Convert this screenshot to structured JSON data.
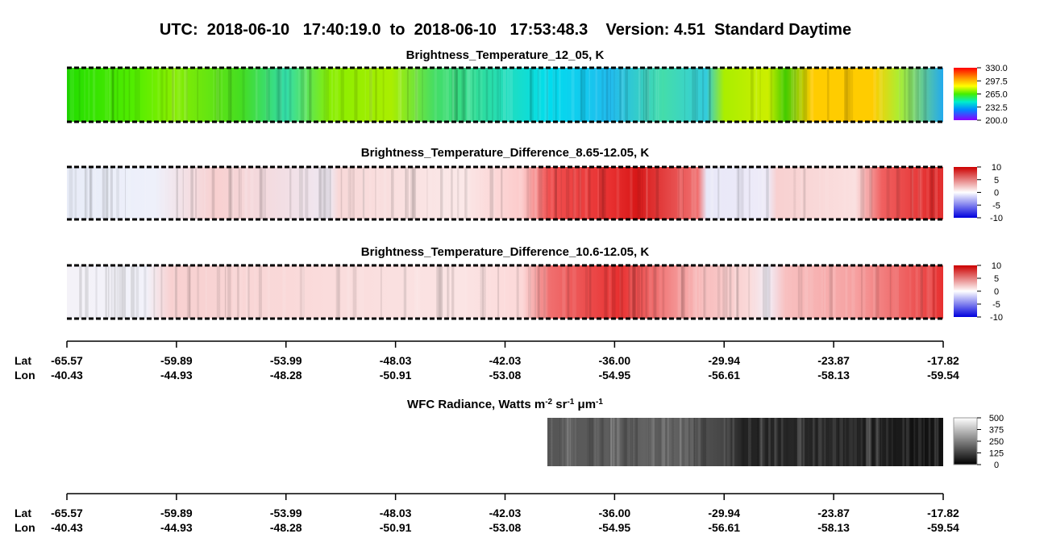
{
  "header": {
    "title": "UTC:  2018-06-10   17:40:19.0  to  2018-06-10   17:53:48.3    Version: 4.51  Standard Daytime"
  },
  "panels": [
    {
      "title": "Brightness_Temperature_12_05, K",
      "colorbar_ticks": [
        {
          "value": 330,
          "label": "330.0"
        },
        {
          "value": 297.5,
          "label": "297.5"
        },
        {
          "value": 265,
          "label": "265.0"
        },
        {
          "value": 232.5,
          "label": "232.5"
        },
        {
          "value": 200,
          "label": "200.0"
        }
      ]
    },
    {
      "title": "Brightness_Temperature_Difference_8.65-12.05, K",
      "colorbar_ticks": [
        10,
        5,
        0,
        -5,
        -10
      ]
    },
    {
      "title": "Brightness_Temperature_Difference_10.6-12.05, K",
      "colorbar_ticks": [
        10,
        5,
        0,
        -5,
        -10
      ]
    },
    {
      "title_parts": [
        "WFC Radiance, Watts m",
        "-2",
        " sr",
        "-1",
        " μm",
        "-1"
      ],
      "colorbar_ticks": [
        500,
        375,
        250,
        125,
        0
      ]
    }
  ],
  "axes": [
    {
      "lat_label": "Lat",
      "lon_label": "Lon",
      "lat": [
        "-65.57",
        "-59.89",
        "-53.99",
        "-48.03",
        "-42.03",
        "-36.00",
        "-29.94",
        "-23.87",
        "-17.82"
      ],
      "lon": [
        "-40.43",
        "-44.93",
        "-48.28",
        "-50.91",
        "-53.08",
        "-54.95",
        "-56.61",
        "-58.13",
        "-59.54"
      ]
    },
    {
      "lat_label": "Lat",
      "lon_label": "Lon",
      "lat": [
        "-65.57",
        "-59.89",
        "-53.99",
        "-48.03",
        "-42.03",
        "-36.00",
        "-29.94",
        "-23.87",
        "-17.82"
      ],
      "lon": [
        "-40.43",
        "-44.93",
        "-48.28",
        "-50.91",
        "-53.08",
        "-54.95",
        "-56.61",
        "-58.13",
        "-59.54"
      ]
    }
  ]
}
